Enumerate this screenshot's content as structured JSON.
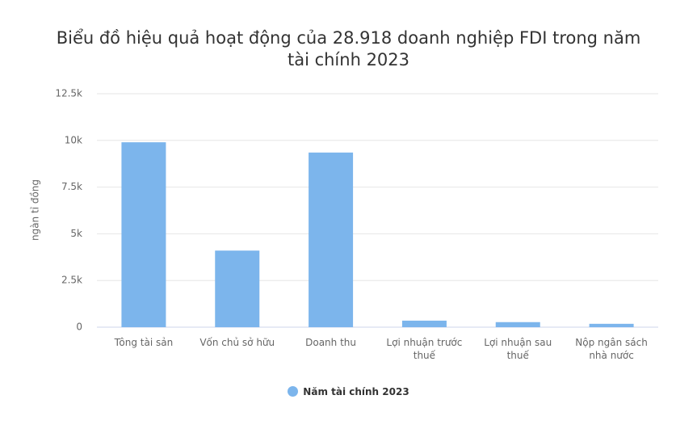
{
  "chart_data": {
    "type": "bar",
    "title": "Biểu đồ hiệu quả hoạt động của 28.918 doanh nghiệp FDI trong năm tài chính 2023",
    "y_label": "ngàn tỉ đồng",
    "categories": [
      "Tông tài sản",
      "Vốn chủ sở hữu",
      "Doanh thu",
      "Lợi nhuận trước thuế",
      "Lợi nhuận sau thuế",
      "Nộp ngân sách nhà nước"
    ],
    "series": [
      {
        "name": "Năm tài chính 2023",
        "color": "#7cb5ec",
        "values": [
          9900,
          4100,
          9350,
          350,
          270,
          180
        ]
      }
    ],
    "ylim": [
      0,
      12500
    ],
    "yticks": [
      0,
      {
        "value": 2500,
        "label": "2.5k"
      },
      {
        "value": 5000,
        "label": "5k"
      },
      {
        "value": 7500,
        "label": "7.5k"
      },
      {
        "value": 10000,
        "label": "10k"
      },
      {
        "value": 12500,
        "label": "12.5k"
      }
    ],
    "grid": true
  }
}
